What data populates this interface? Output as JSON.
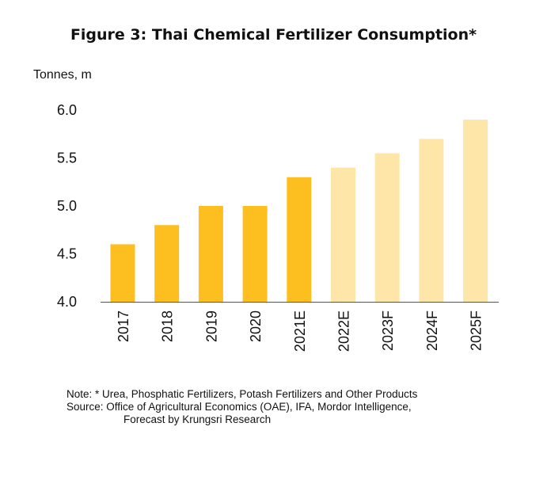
{
  "title": "Figure 3: Thai Chemical Fertilizer Consumption*",
  "unit_label": "Tonnes, m",
  "colors": {
    "actual": "#FDBF20",
    "forecast": "#FDE6A8",
    "axis": "#555555"
  },
  "chart_data": {
    "type": "bar",
    "title": "Figure 3: Thai Chemical Fertilizer Consumption*",
    "xlabel": "",
    "ylabel": "Tonnes, m",
    "ylim": [
      4.0,
      6.0
    ],
    "yticks": [
      "4.0",
      "4.5",
      "5.0",
      "5.5",
      "6.0"
    ],
    "categories": [
      "2017",
      "2018",
      "2019",
      "2020",
      "2021E",
      "2022E",
      "2023F",
      "2024F",
      "2025F"
    ],
    "values": [
      4.6,
      4.8,
      5.0,
      5.0,
      5.3,
      5.4,
      5.55,
      5.7,
      5.9
    ],
    "forecast": [
      false,
      false,
      false,
      false,
      false,
      true,
      true,
      true,
      true
    ],
    "grid": false
  },
  "notes": {
    "note": "Note: * Urea, Phosphatic Fertilizers, Potash Fertilizers and Other Products",
    "source_line1": "Source: Office of Agricultural Economics (OAE), IFA, Mordor Intelligence,",
    "source_line2": "Forecast by Krungsri Research"
  }
}
